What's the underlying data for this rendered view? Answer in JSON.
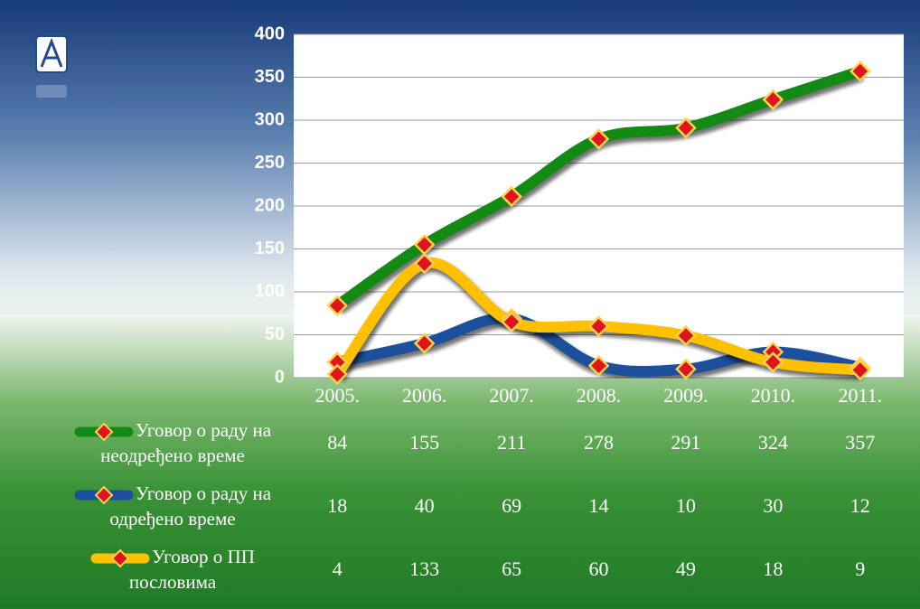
{
  "chart_data": {
    "type": "line",
    "categories": [
      "2005.",
      "2006.",
      "2007.",
      "2008.",
      "2009.",
      "2010.",
      "2011."
    ],
    "series": [
      {
        "name": "Уговор о раду на неодређено време",
        "color": "#138a13",
        "values": [
          84,
          155,
          211,
          278,
          291,
          324,
          357
        ]
      },
      {
        "name": "Уговор о раду на одређено време",
        "color": "#1c4f9c",
        "values": [
          18,
          40,
          69,
          14,
          10,
          30,
          12
        ]
      },
      {
        "name": "Уговор о ПП пословима",
        "color": "#ffc000",
        "values": [
          4,
          133,
          65,
          60,
          49,
          18,
          9
        ]
      }
    ],
    "ylim": [
      0,
      400
    ],
    "yticks": [
      0,
      50,
      100,
      150,
      200,
      250,
      300,
      350,
      400
    ],
    "grid": true
  }
}
